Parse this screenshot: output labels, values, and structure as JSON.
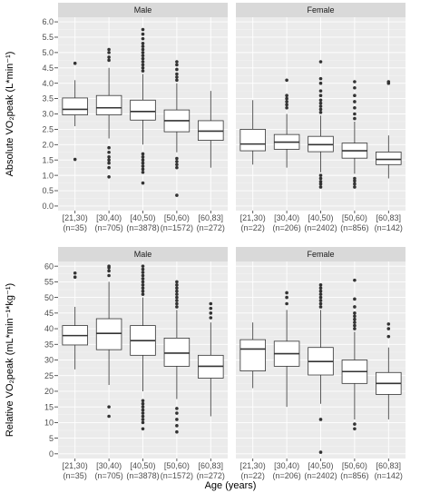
{
  "colors": {
    "panel_bg": "#ebebeb",
    "grid_major": "#ffffff",
    "strip_bg": "#d9d9d9",
    "box_fill": "#ffffff",
    "box_stroke": "#333333",
    "outlier": "#333333"
  },
  "figure": {
    "x_title": "Age (years)"
  },
  "chart_data": [
    {
      "type": "boxplot",
      "row": "top",
      "ylabel": "Absolute VO₂peak (L*min⁻¹)",
      "ylim": [
        -0.15,
        6.15
      ],
      "yticks": [
        "0.0",
        "0.5",
        "1.0",
        "1.5",
        "2.0",
        "2.5",
        "3.0",
        "3.5",
        "4.0",
        "4.5",
        "5.0",
        "5.5",
        "6.0"
      ],
      "ytick_values": [
        0,
        0.5,
        1,
        1.5,
        2,
        2.5,
        3,
        3.5,
        4,
        4.5,
        5,
        5.5,
        6
      ],
      "categories": [
        "[21,30)",
        "[30,40)",
        "[40,50)",
        "[50,60)",
        "[60,83]"
      ],
      "grid": true,
      "facets": [
        {
          "label": "Male",
          "counts": [
            "(n=35)",
            "(n=705)",
            "(n=3878)",
            "(n=1572)",
            "(n=272)"
          ],
          "boxes": [
            {
              "min": 2.6,
              "q1": 2.97,
              "median": 3.15,
              "q3": 3.52,
              "max": 4.1,
              "outliers": [
                4.65,
                1.52
              ]
            },
            {
              "min": 2.2,
              "q1": 2.97,
              "median": 3.2,
              "q3": 3.6,
              "max": 4.5,
              "outliers": [
                4.75,
                4.85,
                5.0,
                5.1,
                1.9,
                1.75,
                1.6,
                1.5,
                1.4,
                1.25,
                0.95
              ]
            },
            {
              "min": 2.0,
              "q1": 2.8,
              "median": 3.08,
              "q3": 3.45,
              "max": 4.3,
              "outliers": [
                4.4,
                4.5,
                4.6,
                4.7,
                4.8,
                4.9,
                5.0,
                5.1,
                5.2,
                5.3,
                5.45,
                5.6,
                5.75,
                1.7,
                1.6,
                1.5,
                1.4,
                1.3,
                1.2,
                1.1,
                0.75
              ]
            },
            {
              "min": 1.75,
              "q1": 2.42,
              "median": 2.78,
              "q3": 3.13,
              "max": 4.0,
              "outliers": [
                4.1,
                4.2,
                4.3,
                4.45,
                4.6,
                4.7,
                1.55,
                1.45,
                1.35,
                1.25,
                0.35
              ]
            },
            {
              "min": 1.25,
              "q1": 2.14,
              "median": 2.44,
              "q3": 2.78,
              "max": 3.75,
              "outliers": []
            }
          ]
        },
        {
          "label": "Female",
          "counts": [
            "(n=22)",
            "(n=206)",
            "(n=2402)",
            "(n=856)",
            "(n=142)"
          ],
          "boxes": [
            {
              "min": 1.35,
              "q1": 1.8,
              "median": 2.02,
              "q3": 2.5,
              "max": 3.45,
              "outliers": []
            },
            {
              "min": 1.25,
              "q1": 1.85,
              "median": 2.08,
              "q3": 2.33,
              "max": 3.0,
              "outliers": [
                3.2,
                3.3,
                3.4,
                3.5,
                3.6,
                4.1
              ]
            },
            {
              "min": 1.1,
              "q1": 1.77,
              "median": 2.0,
              "q3": 2.27,
              "max": 2.95,
              "outliers": [
                3.05,
                3.15,
                3.25,
                3.35,
                3.45,
                3.6,
                3.75,
                4.0,
                4.15,
                4.7,
                1.0,
                0.9,
                0.8,
                0.72,
                0.62
              ]
            },
            {
              "min": 1.05,
              "q1": 1.56,
              "median": 1.8,
              "q3": 2.05,
              "max": 2.75,
              "outliers": [
                2.85,
                3.0,
                3.2,
                3.4,
                3.6,
                3.85,
                4.05,
                0.9,
                0.82,
                0.72,
                0.62
              ]
            },
            {
              "min": 0.9,
              "q1": 1.35,
              "median": 1.52,
              "q3": 1.76,
              "max": 2.3,
              "outliers": [
                4.0,
                4.05
              ]
            }
          ]
        }
      ]
    },
    {
      "type": "boxplot",
      "row": "bottom",
      "ylabel": "Relative VO₂peak (mL*min⁻¹*kg⁻¹)",
      "ylim": [
        -1.5,
        61.5
      ],
      "yticks": [
        "0",
        "5",
        "10",
        "15",
        "20",
        "25",
        "30",
        "35",
        "40",
        "45",
        "50",
        "55",
        "60"
      ],
      "ytick_values": [
        0,
        5,
        10,
        15,
        20,
        25,
        30,
        35,
        40,
        45,
        50,
        55,
        60
      ],
      "categories": [
        "[21,30)",
        "[30,40)",
        "[40,50)",
        "[50,60)",
        "[60,83]"
      ],
      "grid": true,
      "facets": [
        {
          "label": "Male",
          "counts": [
            "(n=35)",
            "(n=705)",
            "(n=3878)",
            "(n=1572)",
            "(n=272)"
          ],
          "boxes": [
            {
              "min": 27.0,
              "q1": 34.8,
              "median": 37.8,
              "q3": 41.0,
              "max": 47.0,
              "outliers": [
                56.5,
                57.8
              ]
            },
            {
              "min": 22.0,
              "q1": 33.3,
              "median": 38.5,
              "q3": 43.2,
              "max": 55.0,
              "outliers": [
                57.0,
                58.5,
                59.5,
                60.0,
                15.0,
                12.0
              ]
            },
            {
              "min": 20.0,
              "q1": 31.5,
              "median": 36.2,
              "q3": 41.0,
              "max": 50.0,
              "outliers": [
                51,
                52,
                53,
                54,
                55,
                56,
                57,
                58,
                59,
                60,
                17,
                16,
                15,
                14,
                13,
                12,
                11,
                10,
                8
              ]
            },
            {
              "min": 17.5,
              "q1": 28.0,
              "median": 32.2,
              "q3": 37.0,
              "max": 46.0,
              "outliers": [
                47,
                48,
                49,
                50,
                51,
                52,
                53,
                54,
                55,
                14.5,
                13,
                11,
                9,
                7
              ]
            },
            {
              "min": 12.0,
              "q1": 24.2,
              "median": 28.0,
              "q3": 31.5,
              "max": 42.0,
              "outliers": [
                43.5,
                45,
                46.5,
                48
              ]
            }
          ]
        },
        {
          "label": "Female",
          "counts": [
            "(n=22)",
            "(n=206)",
            "(n=2402)",
            "(n=856)",
            "(n=142)"
          ],
          "boxes": [
            {
              "min": 21.0,
              "q1": 26.5,
              "median": 33.5,
              "q3": 36.5,
              "max": 42.0,
              "outliers": []
            },
            {
              "min": 15.0,
              "q1": 28.0,
              "median": 32.0,
              "q3": 36.0,
              "max": 46.0,
              "outliers": [
                48,
                50,
                51.5
              ]
            },
            {
              "min": 16.0,
              "q1": 25.2,
              "median": 29.5,
              "q3": 34.0,
              "max": 46.0,
              "outliers": [
                47,
                48,
                49,
                50,
                51,
                52,
                53,
                54,
                11,
                0.5
              ]
            },
            {
              "min": 11.0,
              "q1": 22.5,
              "median": 26.3,
              "q3": 30.0,
              "max": 39.0,
              "outliers": [
                40,
                41,
                42,
                43,
                44,
                45,
                47,
                49.5,
                55.5,
                9.5,
                8
              ]
            },
            {
              "min": 11.0,
              "q1": 19.0,
              "median": 22.5,
              "q3": 26.0,
              "max": 34.0,
              "outliers": [
                37.5,
                40,
                41.5
              ]
            }
          ]
        }
      ]
    }
  ]
}
